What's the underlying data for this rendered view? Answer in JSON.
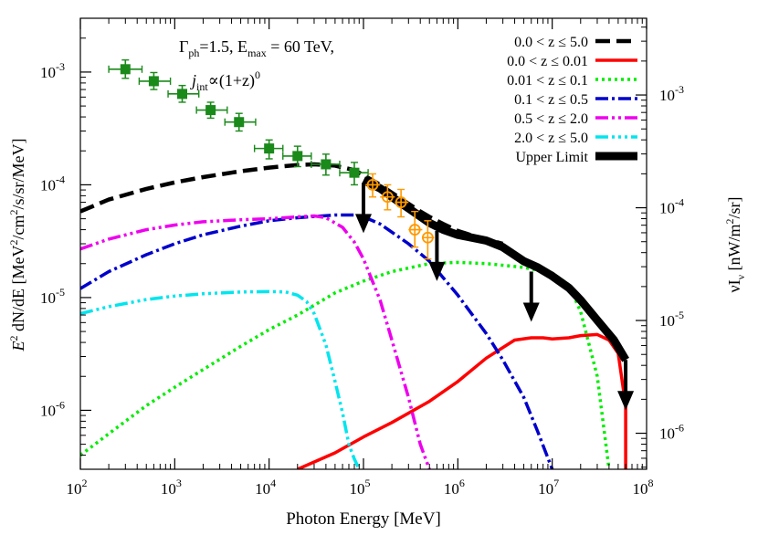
{
  "chart_data": {
    "type": "line",
    "xlabel": "Photon Energy [MeV]",
    "ylabel_main": "E",
    "ylabel_exp": "2",
    "ylabel_rest": " dN/dE [MeV",
    "ylabel_exp2": "2",
    "ylabel_rest2": "/cm",
    "ylabel_exp3": "2",
    "ylabel_tail": "/s/sr/MeV]",
    "y2label_main": "νI",
    "y2label_sub": "ν",
    "y2label_rest": " [nW/m",
    "y2label_exp": "2",
    "y2label_tail": "/sr]",
    "annotation_line1_main": "Γ",
    "annotation_line1_sub": "ph",
    "annotation_line1_mid": "=1.5, E",
    "annotation_line1_sub2": "max",
    "annotation_line1_tail": " = 60 TeV,",
    "annotation_line2_main": "j",
    "annotation_line2_sub": "int",
    "annotation_line2_mid": "∝(1+z)",
    "annotation_line2_exp": "0",
    "x_log_range": [
      100,
      100000000
    ],
    "y_log_range": [
      3e-07,
      0.003
    ],
    "x_ticks": [
      {
        "value": 100,
        "base": "10",
        "exp": "2"
      },
      {
        "value": 1000,
        "base": "10",
        "exp": "3"
      },
      {
        "value": 10000,
        "base": "10",
        "exp": "4"
      },
      {
        "value": 100000,
        "base": "10",
        "exp": "5"
      },
      {
        "value": 1000000,
        "base": "10",
        "exp": "6"
      },
      {
        "value": 10000000,
        "base": "10",
        "exp": "7"
      },
      {
        "value": 100000000,
        "base": "10",
        "exp": "8"
      }
    ],
    "y_ticks": [
      {
        "value": 1e-06,
        "base": "10",
        "exp": "-6"
      },
      {
        "value": 1e-05,
        "base": "10",
        "exp": "-5"
      },
      {
        "value": 0.0001,
        "base": "10",
        "exp": "-4"
      },
      {
        "value": 0.001,
        "base": "10",
        "exp": "-3"
      }
    ],
    "y2_ticks": [
      {
        "value": 6.26e-07,
        "base": "10",
        "exp": "-6"
      },
      {
        "value": 6.26e-06,
        "base": "10",
        "exp": "-5"
      },
      {
        "value": 6.26e-05,
        "base": "10",
        "exp": "-4"
      },
      {
        "value": 0.000626,
        "base": "10",
        "exp": "-3"
      }
    ],
    "legend_position": "top-right",
    "series": [
      {
        "name": "0.0 < z ≤ 5.0",
        "color": "#000000",
        "dash": "16,7",
        "width": 4.5,
        "x": [
          100,
          200,
          500,
          1000,
          2000,
          5000,
          10000,
          20000,
          30000,
          50000,
          80000,
          100000,
          150000,
          200000,
          300000,
          400000,
          500000,
          700000,
          1000000,
          1500000,
          2000000,
          3000000
        ],
        "y": [
          5.8e-05,
          7.4e-05,
          9.2e-05,
          0.000105,
          0.000117,
          0.000132,
          0.000142,
          0.00015,
          0.000152,
          0.000148,
          0.000135,
          0.000122,
          0.0001,
          8.5e-05,
          6.8e-05,
          5.8e-05,
          5.2e-05,
          4.5e-05,
          3.9e-05,
          3.5e-05,
          3.3e-05,
          3e-05
        ]
      },
      {
        "name": "0.0 < z ≤ 0.01",
        "color": "#ff0000",
        "dash": "",
        "width": 3.5,
        "x": [
          20000,
          50000,
          100000,
          200000,
          500000,
          1000000,
          2000000,
          4000000,
          6000000,
          8000000,
          10000000,
          15000000,
          20000000,
          30000000,
          40000000,
          50000000,
          60000000,
          60000000
        ],
        "y": [
          3e-07,
          4.2e-07,
          5.8e-07,
          7.8e-07,
          1.2e-06,
          1.8e-06,
          2.9e-06,
          4.2e-06,
          4.4e-06,
          4.4e-06,
          4.3e-06,
          4.4e-06,
          4.6e-06,
          4.7e-06,
          4.2e-06,
          3.2e-06,
          1.1e-06,
          3e-07
        ]
      },
      {
        "name": "0.01 < z ≤ 0.1",
        "color": "#00ee00",
        "dash": "3,4",
        "width": 3.5,
        "x": [
          100,
          200,
          500,
          1000,
          2000,
          5000,
          10000,
          20000,
          50000,
          100000,
          200000,
          500000,
          1000000,
          2000000,
          5000000,
          10000000,
          15000000,
          20000000,
          30000000,
          40000000
        ],
        "y": [
          4e-07,
          6.2e-07,
          1.1e-06,
          1.6e-06,
          2.3e-06,
          3.7e-06,
          5.2e-06,
          7e-06,
          1.1e-05,
          1.4e-05,
          1.7e-05,
          2e-05,
          2.05e-05,
          2e-05,
          1.85e-05,
          1.65e-05,
          1.3e-05,
          7.5e-06,
          2e-06,
          3e-07
        ]
      },
      {
        "name": "0.1 < z ≤ 0.5",
        "color": "#0000cc",
        "dash": "14,4,3,4",
        "width": 3.5,
        "x": [
          100,
          200,
          500,
          1000,
          2000,
          5000,
          10000,
          20000,
          50000,
          80000,
          100000,
          150000,
          200000,
          300000,
          500000,
          700000,
          1000000,
          2000000,
          3000000,
          5000000,
          7000000,
          10000000
        ],
        "y": [
          1.2e-05,
          1.7e-05,
          2.4e-05,
          3e-05,
          3.6e-05,
          4.3e-05,
          4.8e-05,
          5.1e-05,
          5.4e-05,
          5.4e-05,
          5.2e-05,
          4.5e-05,
          3.8e-05,
          3e-05,
          2.1e-05,
          1.5e-05,
          1.05e-05,
          4.8e-06,
          2.8e-06,
          1.3e-06,
          6.5e-07,
          3e-07
        ]
      },
      {
        "name": "0.5 < z ≤ 2.0",
        "color": "#ee00ee",
        "dash": "14,4,3,4,3,4",
        "width": 3.5,
        "x": [
          100,
          200,
          500,
          1000,
          2000,
          5000,
          10000,
          20000,
          30000,
          40000,
          60000,
          80000,
          100000,
          150000,
          200000,
          300000,
          400000,
          500000
        ],
        "y": [
          2.7e-05,
          3.3e-05,
          4e-05,
          4.4e-05,
          4.7e-05,
          4.9e-05,
          5e-05,
          5.2e-05,
          5.3e-05,
          5.1e-05,
          4.2e-05,
          3.1e-05,
          2.2e-05,
          9.5e-06,
          4.2e-06,
          1.3e-06,
          5e-07,
          3e-07
        ]
      },
      {
        "name": "2.0 < z ≤ 5.0",
        "color": "#00e5ee",
        "dash": "14,4,3,4,3,4,3,4",
        "width": 3.5,
        "x": [
          100,
          200,
          500,
          1000,
          2000,
          5000,
          10000,
          15000,
          20000,
          25000,
          30000,
          40000,
          50000,
          60000,
          70000,
          80000,
          90000
        ],
        "y": [
          7.2e-06,
          8.3e-06,
          9.6e-06,
          1.03e-05,
          1.08e-05,
          1.12e-05,
          1.13e-05,
          1.12e-05,
          1.05e-05,
          9.2e-06,
          7.2e-06,
          3.8e-06,
          1.8e-06,
          9.5e-07,
          5e-07,
          3.7e-07,
          3e-07
        ]
      },
      {
        "name": "Upper Limit",
        "color": "#000000",
        "dash": "",
        "width": 9,
        "x": [
          100000,
          150000,
          200000,
          300000,
          500000,
          700000,
          1000000,
          2000000,
          3000000,
          5000000,
          7000000,
          10000000,
          15000000,
          20000000,
          30000000,
          45000000,
          60000000
        ],
        "y": [
          0.00011,
          9.3e-05,
          7.8e-05,
          6.2e-05,
          4.6e-05,
          4e-05,
          3.6e-05,
          3.2e-05,
          2.8e-05,
          2.1e-05,
          1.85e-05,
          1.55e-05,
          1.22e-05,
          9.5e-06,
          6.3e-06,
          4.2e-06,
          2.8e-06
        ]
      }
    ],
    "upper_limit_arrows": [
      {
        "x": 100000,
        "y": 0.000104
      },
      {
        "x": 600000,
        "y": 3.9e-05
      },
      {
        "x": 6000000,
        "y": 1.7e-05
      },
      {
        "x": 60000000,
        "y": 2.8e-06
      }
    ],
    "data_points_green": {
      "color": "#1a8a1a",
      "points": [
        {
          "x": 300,
          "y": 0.00106,
          "xlo": 200,
          "xhi": 450,
          "ylo": 0.00088,
          "yhi": 0.00128
        },
        {
          "x": 600,
          "y": 0.00083,
          "xlo": 420,
          "xhi": 900,
          "ylo": 0.0007,
          "yhi": 0.00099
        },
        {
          "x": 1200,
          "y": 0.00064,
          "xlo": 850,
          "xhi": 1800,
          "ylo": 0.00054,
          "yhi": 0.00076
        },
        {
          "x": 2400,
          "y": 0.00046,
          "xlo": 1700,
          "xhi": 3600,
          "ylo": 0.00039,
          "yhi": 0.00054
        },
        {
          "x": 4800,
          "y": 0.00036,
          "xlo": 3400,
          "xhi": 7200,
          "ylo": 0.0003,
          "yhi": 0.00043
        },
        {
          "x": 10000,
          "y": 0.00021,
          "xlo": 7000,
          "xhi": 14000,
          "ylo": 0.00017,
          "yhi": 0.00025
        },
        {
          "x": 20000,
          "y": 0.00018,
          "xlo": 14000,
          "xhi": 28000,
          "ylo": 0.000145,
          "yhi": 0.00022
        },
        {
          "x": 40000,
          "y": 0.000152,
          "xlo": 28000,
          "xhi": 56000,
          "ylo": 0.000122,
          "yhi": 0.000187
        },
        {
          "x": 80000,
          "y": 0.000128,
          "xlo": 56000,
          "xhi": 112000,
          "ylo": 0.0001,
          "yhi": 0.000158
        }
      ]
    },
    "data_points_orange": {
      "color": "#ff9900",
      "points": [
        {
          "x": 125000,
          "y": 0.0001,
          "xlo": 105000,
          "xhi": 150000,
          "ylo": 7.8e-05,
          "yhi": 0.000125
        },
        {
          "x": 180000,
          "y": 7.8e-05,
          "xlo": 150000,
          "xhi": 215000,
          "ylo": 6e-05,
          "yhi": 0.0001
        },
        {
          "x": 250000,
          "y": 7e-05,
          "xlo": 215000,
          "xhi": 300000,
          "ylo": 5.2e-05,
          "yhi": 9.1e-05
        },
        {
          "x": 350000,
          "y": 4e-05,
          "xlo": 300000,
          "xhi": 420000,
          "ylo": 2.8e-05,
          "yhi": 5.8e-05
        },
        {
          "x": 480000,
          "y": 3.4e-05,
          "xlo": 420000,
          "xhi": 560000,
          "ylo": 2.2e-05,
          "yhi": 4.8e-05
        }
      ]
    }
  }
}
